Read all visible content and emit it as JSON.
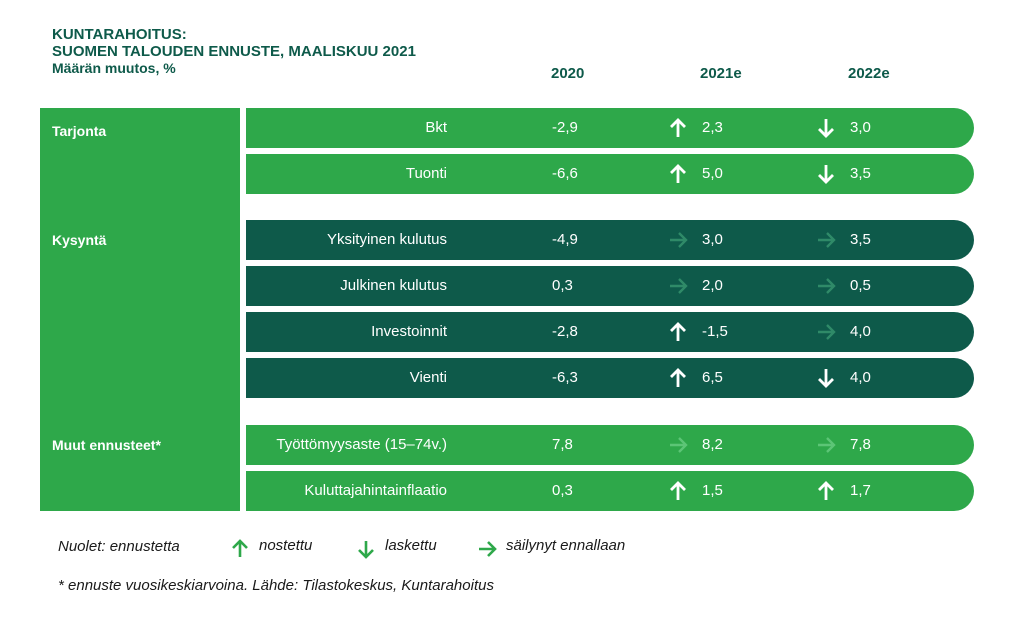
{
  "title": {
    "line1": "KUNTARAHOITUS:",
    "line2": "SUOMEN TALOUDEN ENNUSTE, MAALISKUU 2021",
    "subtitle": "Määrän muutos, %"
  },
  "columns": [
    "2020",
    "2021e",
    "2022e"
  ],
  "groups": [
    {
      "label": "Tarjonta"
    },
    {
      "label": "Kysyntä"
    },
    {
      "label": "Muut ennusteet*"
    }
  ],
  "rows": [
    {
      "label": "Bkt",
      "v2020": "-2,9",
      "v2021": "2,3",
      "a2021": "up",
      "v2022": "3,0",
      "a2022": "down",
      "style": "light"
    },
    {
      "label": "Tuonti",
      "v2020": "-6,6",
      "v2021": "5,0",
      "a2021": "up",
      "v2022": "3,5",
      "a2022": "down",
      "style": "light"
    },
    {
      "label": "Yksityinen kulutus",
      "v2020": "-4,9",
      "v2021": "3,0",
      "a2021": "same",
      "v2022": "3,5",
      "a2022": "same",
      "style": "dark"
    },
    {
      "label": "Julkinen kulutus",
      "v2020": "0,3",
      "v2021": "2,0",
      "a2021": "same",
      "v2022": "0,5",
      "a2022": "same",
      "style": "dark"
    },
    {
      "label": "Investoinnit",
      "v2020": "-2,8",
      "v2021": "-1,5",
      "a2021": "up",
      "v2022": "4,0",
      "a2022": "same",
      "style": "dark"
    },
    {
      "label": "Vienti",
      "v2020": "-6,3",
      "v2021": "6,5",
      "a2021": "up",
      "v2022": "4,0",
      "a2022": "down",
      "style": "dark"
    },
    {
      "label": "Työttömyysaste (15–74v.)",
      "v2020": "7,8",
      "v2021": "8,2",
      "a2021": "same",
      "v2022": "7,8",
      "a2022": "same",
      "style": "light"
    },
    {
      "label": "Kuluttajahintainflaatio",
      "v2020": "0,3",
      "v2021": "1,5",
      "a2021": "up",
      "v2022": "1,7",
      "a2022": "up",
      "style": "light"
    }
  ],
  "legend": {
    "prefix": "Nuolet: ennustetta",
    "up": "nostettu",
    "down": "laskettu",
    "same": "säilynyt ennallaan"
  },
  "footnote": "* ennuste vuosikeskiarvoina. Lähde: Tilastokeskus, Kuntarahoitus",
  "colors": {
    "light_green": "#2ea84a",
    "dark_green": "#0e5a4a",
    "arrow_up_down": "#ffffff",
    "arrow_same_on_light": "#5cc576",
    "arrow_same_on_dark": "#2f8a68",
    "legend_arrow": "#2ea84a"
  },
  "icons": {
    "up": "arrow-up-icon",
    "down": "arrow-down-icon",
    "same": "arrow-right-icon"
  }
}
